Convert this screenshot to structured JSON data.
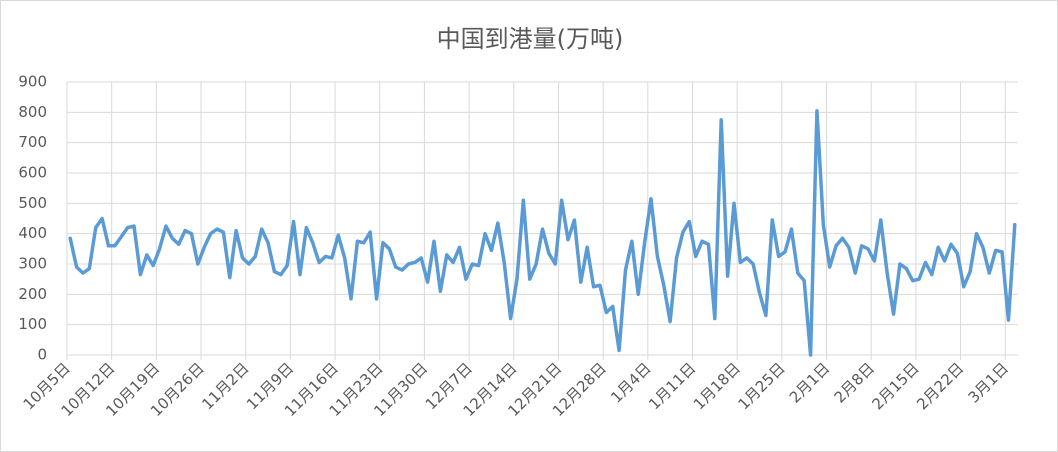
{
  "chart_data": {
    "type": "line",
    "title": "中国到港量(万吨)",
    "categories": [
      "10月5日",
      null,
      null,
      null,
      null,
      null,
      null,
      "10月12日",
      null,
      null,
      null,
      null,
      null,
      null,
      "10月19日",
      null,
      null,
      null,
      null,
      null,
      null,
      "10月26日",
      null,
      null,
      null,
      null,
      null,
      null,
      "11月2日",
      null,
      null,
      null,
      null,
      null,
      null,
      "11月9日",
      null,
      null,
      null,
      null,
      null,
      null,
      "11月16日",
      null,
      null,
      null,
      null,
      null,
      null,
      "11月23日",
      null,
      null,
      null,
      null,
      null,
      null,
      "11月30日",
      null,
      null,
      null,
      null,
      null,
      null,
      "12月7日",
      null,
      null,
      null,
      null,
      null,
      null,
      "12月14日",
      null,
      null,
      null,
      null,
      null,
      null,
      "12月21日",
      null,
      null,
      null,
      null,
      null,
      null,
      "12月28日",
      null,
      null,
      null,
      null,
      null,
      null,
      "1月4日",
      null,
      null,
      null,
      null,
      null,
      null,
      "1月11日",
      null,
      null,
      null,
      null,
      null,
      null,
      "1月18日",
      null,
      null,
      null,
      null,
      null,
      null,
      "1月25日",
      null,
      null,
      null,
      null,
      null,
      null,
      "2月1日",
      null,
      null,
      null,
      null,
      null,
      null,
      "2月8日",
      null,
      null,
      null,
      null,
      null,
      null,
      "2月15日",
      null,
      null,
      null,
      null,
      null,
      null,
      "2月22日",
      null,
      null,
      null,
      null,
      null,
      null,
      "3月1日",
      null
    ],
    "series": [
      {
        "color": "#5b9bd5",
        "values": [
          385,
          290,
          270,
          285,
          420,
          450,
          360,
          360,
          390,
          420,
          425,
          265,
          330,
          295,
          350,
          425,
          385,
          365,
          410,
          400,
          300,
          355,
          400,
          415,
          405,
          255,
          410,
          320,
          300,
          325,
          415,
          370,
          275,
          265,
          295,
          440,
          265,
          420,
          370,
          305,
          325,
          320,
          395,
          320,
          185,
          375,
          370,
          405,
          185,
          370,
          350,
          290,
          280,
          300,
          305,
          320,
          240,
          375,
          210,
          330,
          305,
          355,
          250,
          300,
          295,
          400,
          345,
          435,
          305,
          120,
          250,
          510,
          250,
          300,
          415,
          335,
          300,
          510,
          380,
          445,
          240,
          355,
          225,
          230,
          140,
          160,
          15,
          280,
          375,
          200,
          370,
          515,
          325,
          230,
          110,
          320,
          405,
          440,
          325,
          375,
          365,
          120,
          775,
          260,
          500,
          305,
          320,
          300,
          205,
          130,
          445,
          325,
          340,
          415,
          270,
          245,
          0,
          805,
          430,
          290,
          360,
          385,
          355,
          270,
          360,
          350,
          310,
          445,
          270,
          135,
          300,
          285,
          245,
          250,
          305,
          265,
          355,
          310,
          365,
          335,
          225,
          275,
          400,
          355,
          270,
          345,
          340,
          115,
          430
        ]
      }
    ],
    "ylim": [
      0,
      900
    ],
    "yticks": [
      0,
      100,
      200,
      300,
      400,
      500,
      600,
      700,
      800,
      900
    ],
    "grid": true
  }
}
